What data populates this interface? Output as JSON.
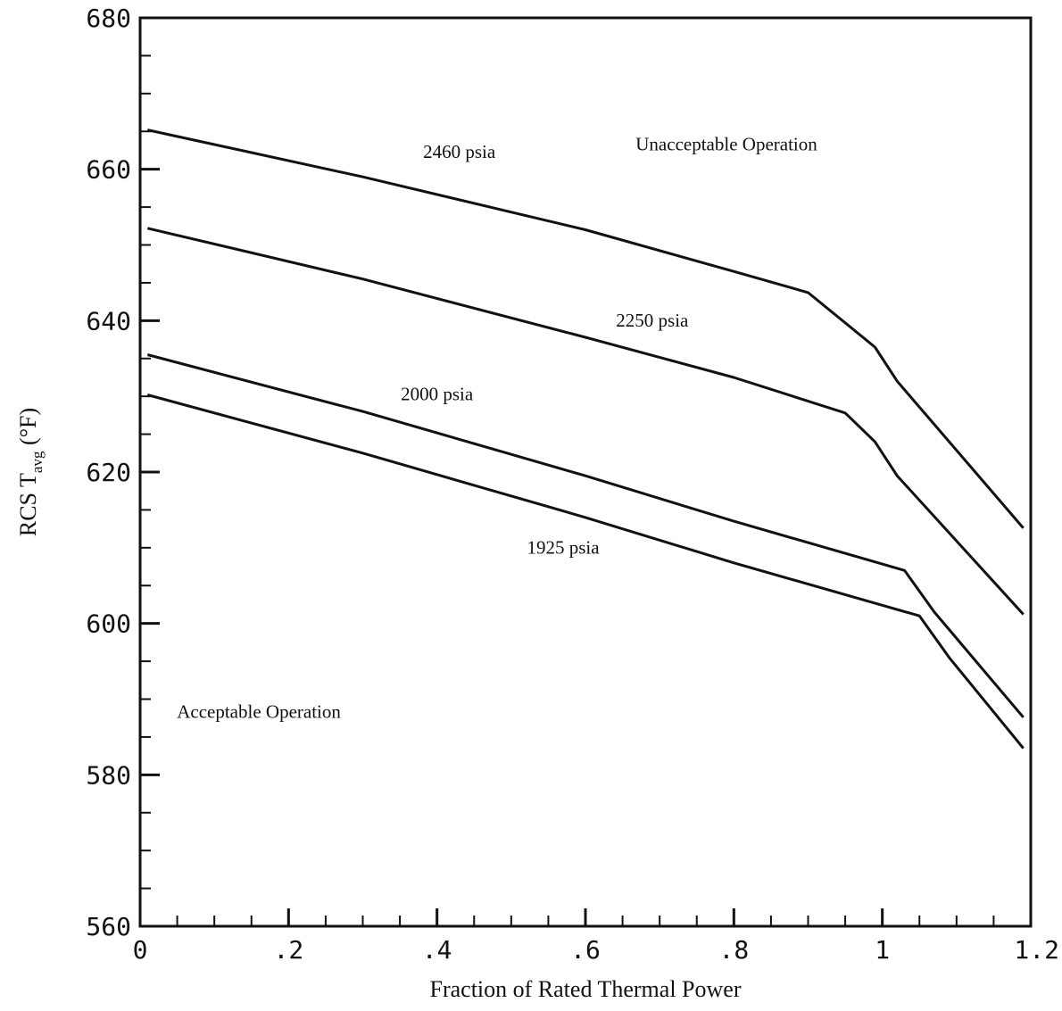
{
  "chart_data": {
    "type": "line",
    "title": "",
    "xlabel": "Fraction of Rated Thermal Power",
    "ylabel": "RCS T",
    "ylabel_sub": "avg",
    "ylabel_unit": " (°F)",
    "xlim": [
      0,
      1.2
    ],
    "ylim": [
      560,
      680
    ],
    "x_ticks": [
      {
        "value": 0,
        "label": "0"
      },
      {
        "value": 0.2,
        "label": ".2"
      },
      {
        "value": 0.4,
        "label": ".4"
      },
      {
        "value": 0.6,
        "label": ".6"
      },
      {
        "value": 0.8,
        "label": ".8"
      },
      {
        "value": 1.0,
        "label": "1"
      },
      {
        "value": 1.2,
        "label": "1.2"
      }
    ],
    "y_ticks": [
      {
        "value": 560,
        "label": "560"
      },
      {
        "value": 580,
        "label": "580"
      },
      {
        "value": 600,
        "label": "600"
      },
      {
        "value": 620,
        "label": "620"
      },
      {
        "value": 640,
        "label": "640"
      },
      {
        "value": 660,
        "label": "660"
      },
      {
        "value": 680,
        "label": "680"
      }
    ],
    "x_minor_step": 0.05,
    "y_minor_step": 5,
    "grid": false,
    "legend": "none",
    "series": [
      {
        "name": "2460 psia",
        "label_at": [
          0.43,
          661.5
        ],
        "points": [
          [
            0.01,
            665.2
          ],
          [
            0.3,
            659.0
          ],
          [
            0.6,
            652.0
          ],
          [
            0.8,
            646.5
          ],
          [
            0.9,
            643.7
          ],
          [
            0.99,
            636.5
          ],
          [
            1.02,
            632.0
          ],
          [
            1.19,
            612.6
          ]
        ]
      },
      {
        "name": "2250 psia",
        "label_at": [
          0.69,
          639.2
        ],
        "points": [
          [
            0.01,
            652.2
          ],
          [
            0.3,
            645.5
          ],
          [
            0.6,
            637.8
          ],
          [
            0.8,
            632.5
          ],
          [
            0.95,
            627.8
          ],
          [
            0.99,
            624.0
          ],
          [
            1.02,
            619.5
          ],
          [
            1.19,
            601.2
          ]
        ]
      },
      {
        "name": "2000 psia",
        "label_at": [
          0.4,
          629.5
        ],
        "points": [
          [
            0.01,
            635.5
          ],
          [
            0.3,
            628.0
          ],
          [
            0.6,
            619.5
          ],
          [
            0.8,
            613.5
          ],
          [
            1.03,
            607.0
          ],
          [
            1.07,
            601.5
          ],
          [
            1.19,
            587.6
          ]
        ]
      },
      {
        "name": "1925 psia",
        "label_at": [
          0.57,
          609.2
        ],
        "points": [
          [
            0.01,
            630.2
          ],
          [
            0.3,
            622.5
          ],
          [
            0.6,
            614.0
          ],
          [
            0.8,
            608.0
          ],
          [
            1.05,
            601.0
          ],
          [
            1.09,
            595.5
          ],
          [
            1.19,
            583.5
          ]
        ]
      }
    ],
    "annotations": [
      {
        "text": "Unacceptable Operation",
        "at": [
          0.79,
          662.5
        ]
      },
      {
        "text": "Acceptable Operation",
        "at": [
          0.16,
          587.5
        ]
      }
    ]
  }
}
